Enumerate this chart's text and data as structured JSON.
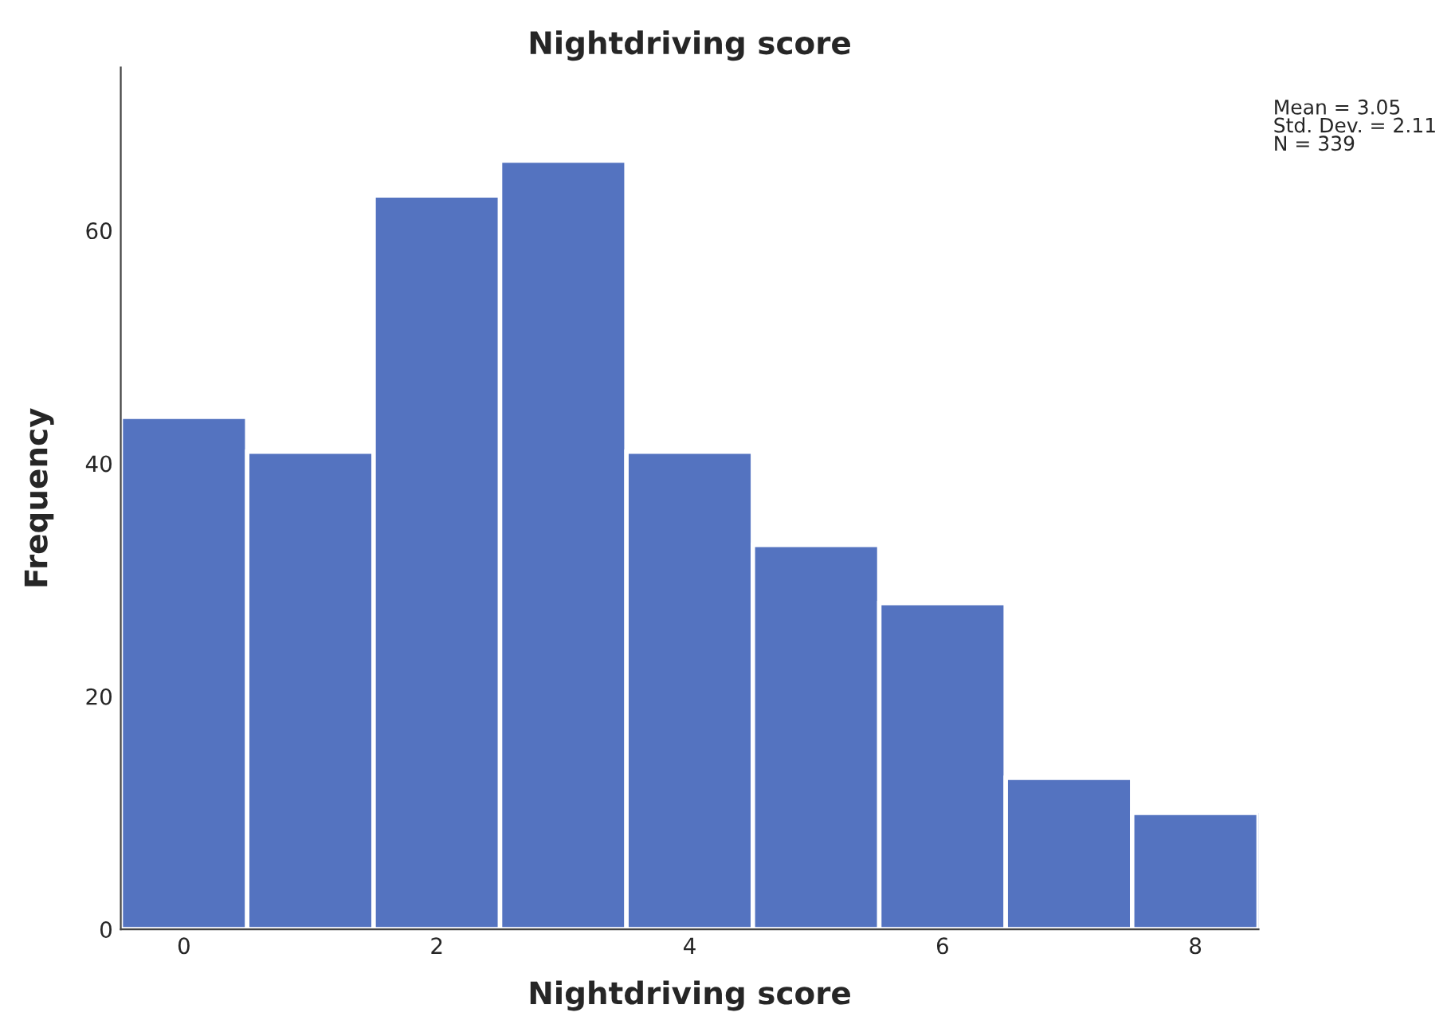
{
  "chart_data": {
    "type": "histogram",
    "title": "Nightdriving score",
    "xlabel": "Nightdriving score",
    "ylabel": "Frequency",
    "bins": [
      -0.5,
      0.5,
      1.5,
      2.5,
      3.5,
      4.5,
      5.5,
      6.5,
      7.5,
      8.5
    ],
    "values": [
      44,
      41,
      63,
      66,
      41,
      33,
      28,
      13,
      10
    ],
    "color": "#5473c0",
    "xlim": [
      -0.5,
      8.5
    ],
    "xticks": [
      0,
      2,
      4,
      6,
      8
    ],
    "ylim": [
      0,
      74
    ],
    "yticks": [
      0,
      20,
      40,
      60
    ],
    "grid": false,
    "annotations": [
      "Mean = 3.05",
      "Std. Dev. = 2.11",
      "N = 339"
    ]
  }
}
